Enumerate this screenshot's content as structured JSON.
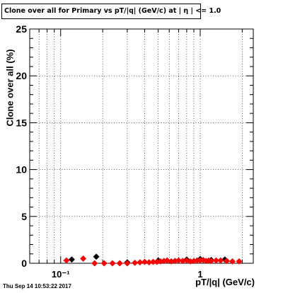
{
  "chart_data": {
    "type": "scatter",
    "title": "Clone  over all for Primary vs pT/|q| (GeV/c) at |  η | <= 1.0",
    "xlabel": "pT/|q| (GeV/c)",
    "ylabel": "Clone  over all (%)",
    "x_scale": "log",
    "xlim": [
      0.06,
      2.4
    ],
    "ylim": [
      0,
      25
    ],
    "grid": true,
    "x_ticks": [
      "10⁻¹",
      "1"
    ],
    "y_ticks": [
      "0",
      "5",
      "10",
      "15",
      "20",
      "25"
    ],
    "series": [
      {
        "color": "#000000",
        "marker": "diamond",
        "x": [
          0.12,
          0.18,
          0.3,
          0.5,
          0.8,
          1.0,
          1.2,
          1.5
        ],
        "y": [
          0.4,
          0.7,
          0.1,
          0.3,
          0.4,
          0.45,
          0.35,
          0.4
        ]
      },
      {
        "color": "#ff0000",
        "marker": "diamond",
        "x": [
          0.11,
          0.145,
          0.175,
          0.205,
          0.235,
          0.265,
          0.3,
          0.34,
          0.37,
          0.4,
          0.43,
          0.46,
          0.49,
          0.52,
          0.55,
          0.58,
          0.62,
          0.66,
          0.7,
          0.75,
          0.8,
          0.85,
          0.9,
          0.95,
          1.0,
          1.05,
          1.1,
          1.15,
          1.2,
          1.3,
          1.4,
          1.55,
          1.7,
          1.9
        ],
        "y": [
          0.3,
          0.5,
          0.0,
          0.0,
          0.0,
          0.0,
          0.0,
          0.05,
          0.1,
          0.15,
          0.1,
          0.15,
          0.15,
          0.2,
          0.25,
          0.3,
          0.2,
          0.25,
          0.3,
          0.25,
          0.3,
          0.2,
          0.25,
          0.3,
          0.3,
          0.35,
          0.25,
          0.3,
          0.25,
          0.3,
          0.3,
          0.25,
          0.2,
          0.2
        ]
      }
    ]
  },
  "footer": {
    "timestamp": "Thu Sep 14 10:53:22 2017"
  }
}
